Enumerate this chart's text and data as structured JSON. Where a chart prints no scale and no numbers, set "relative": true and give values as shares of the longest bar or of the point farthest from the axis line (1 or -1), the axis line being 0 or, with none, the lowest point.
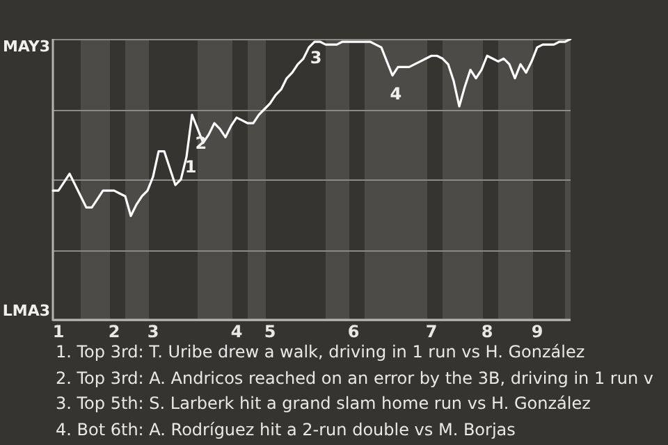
{
  "chart_data": {
    "type": "line",
    "relative": true,
    "categories": [
      null,
      "1",
      null,
      null,
      null,
      null,
      null,
      null,
      null,
      null,
      null,
      "2",
      null,
      null,
      null,
      null,
      null,
      null,
      "3",
      null,
      null,
      null,
      null,
      null,
      null,
      null,
      null,
      null,
      null,
      null,
      null,
      null,
      null,
      "4",
      null,
      null,
      null,
      null,
      null,
      "5",
      null,
      null,
      null,
      null,
      null,
      null,
      null,
      null,
      null,
      null,
      null,
      null,
      null,
      null,
      "6",
      null,
      null,
      null,
      null,
      null,
      null,
      null,
      null,
      null,
      null,
      null,
      null,
      null,
      "7",
      null,
      null,
      null,
      null,
      null,
      null,
      null,
      null,
      null,
      "8",
      null,
      null,
      null,
      null,
      null,
      null,
      null,
      null,
      "9",
      null,
      null,
      null,
      null,
      null,
      null
    ],
    "series": [
      {
        "color": "#ffffff",
        "values": [
          0.46,
          0.46,
          0.49,
          0.52,
          0.48,
          0.44,
          0.4,
          0.4,
          0.43,
          0.46,
          0.46,
          0.46,
          0.45,
          0.44,
          0.37,
          0.41,
          0.44,
          0.46,
          0.51,
          0.6,
          0.6,
          0.54,
          0.48,
          0.5,
          0.58,
          0.73,
          0.68,
          0.63,
          0.66,
          0.7,
          0.68,
          0.65,
          0.69,
          0.72,
          0.71,
          0.7,
          0.7,
          0.73,
          0.75,
          0.77,
          0.8,
          0.82,
          0.86,
          0.88,
          0.91,
          0.93,
          0.97,
          0.99,
          0.99,
          0.98,
          0.98,
          0.98,
          0.99,
          0.99,
          0.99,
          0.99,
          0.99,
          0.99,
          0.98,
          0.97,
          0.92,
          0.87,
          0.9,
          0.9,
          0.9,
          0.91,
          0.92,
          0.93,
          0.94,
          0.94,
          0.93,
          0.91,
          0.85,
          0.76,
          0.83,
          0.89,
          0.86,
          0.89,
          0.94,
          0.93,
          0.92,
          0.93,
          0.91,
          0.86,
          0.91,
          0.88,
          0.92,
          0.97,
          0.98,
          0.98,
          0.98,
          0.99,
          0.99,
          1.0
        ]
      }
    ],
    "grid": "y",
    "legend": false,
    "marker": "none",
    "line_style": "solid",
    "annotations": [
      "1",
      "2",
      "3",
      "4",
      "MAY3",
      "LMA3",
      "1. Top 3rd: T. Uribe drew a walk, driving in 1 run vs H. González",
      "2. Top 3rd: A. Andricos reached on an error by the 3B, driving in 1 run v",
      "3. Top 5th: S. Larberk hit a grand slam home run vs H. González",
      "4. Bot 6th: A. Rodríguez hit a 2-run double vs M. Borjas"
    ]
  }
}
